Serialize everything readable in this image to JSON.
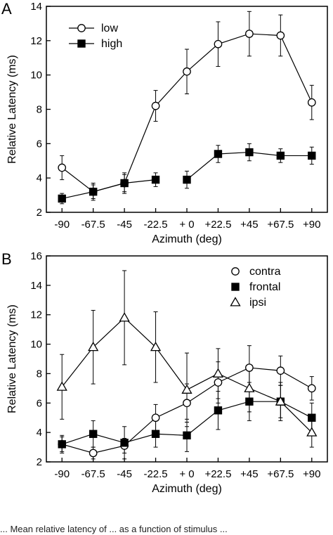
{
  "chart_data": [
    {
      "panel_label": "A",
      "type": "line",
      "categories": [
        "-90",
        "-67.5",
        "-45",
        "-22.5",
        "+ 0",
        "+22.5",
        "+45",
        "+67.5",
        "+90"
      ],
      "xlabel": "Azimuth (deg)",
      "ylabel": "Relative Latency (ms)",
      "ylim": [
        2,
        14
      ],
      "yticks": [
        2,
        4,
        6,
        8,
        10,
        12,
        14
      ],
      "legend_position": "top-left",
      "grid": false,
      "series": [
        {
          "name": "low",
          "marker": "open-circle",
          "connected": true,
          "values": [
            4.6,
            3.2,
            3.7,
            8.2,
            10.2,
            11.8,
            12.4,
            12.3,
            8.4
          ],
          "errors": [
            0.7,
            0.5,
            0.6,
            0.9,
            1.3,
            1.3,
            1.3,
            1.2,
            1.0
          ]
        },
        {
          "name": "high",
          "marker": "filled-square",
          "connected_segments": [
            [
              0,
              3
            ],
            [
              4,
              8
            ]
          ],
          "values": [
            2.8,
            3.2,
            3.7,
            3.9,
            3.9,
            5.4,
            5.5,
            5.3,
            5.3
          ],
          "errors": [
            0.3,
            0.4,
            0.5,
            0.4,
            0.5,
            0.5,
            0.5,
            0.4,
            0.5
          ]
        }
      ]
    },
    {
      "panel_label": "B",
      "type": "line",
      "categories": [
        "-90",
        "-67.5",
        "-45",
        "-22.5",
        "+ 0",
        "+22.5",
        "+45",
        "+67.5",
        "+90"
      ],
      "xlabel": "Azimuth (deg)",
      "ylabel": "Relative Latency (ms)",
      "ylim": [
        2,
        16
      ],
      "yticks": [
        2,
        4,
        6,
        8,
        10,
        12,
        14,
        16
      ],
      "legend_position": "top-right",
      "grid": false,
      "series": [
        {
          "name": "contra",
          "marker": "open-circle",
          "values": [
            3.2,
            2.6,
            3.1,
            5.0,
            6.0,
            7.4,
            8.4,
            8.2,
            7.0
          ],
          "errors": [
            0.6,
            0.4,
            0.5,
            0.9,
            1.3,
            1.4,
            1.5,
            1.0,
            0.8
          ]
        },
        {
          "name": "frontal",
          "marker": "filled-square",
          "values": [
            3.2,
            3.9,
            3.3,
            3.9,
            3.8,
            5.5,
            6.1,
            6.1,
            5.0
          ],
          "errors": [
            0.5,
            0.9,
            1.1,
            0.9,
            1.1,
            1.3,
            1.3,
            1.1,
            1.0
          ]
        },
        {
          "name": "ipsi",
          "marker": "open-triangle",
          "values": [
            7.1,
            9.8,
            11.8,
            9.8,
            6.9,
            8.0,
            7.0,
            6.1,
            4.0
          ],
          "errors": [
            2.2,
            2.5,
            3.2,
            2.4,
            2.5,
            1.7,
            1.6,
            1.3,
            1.0
          ]
        }
      ]
    }
  ],
  "caption_fragment": "... Mean relative latency of ... as a function of stimulus ..."
}
